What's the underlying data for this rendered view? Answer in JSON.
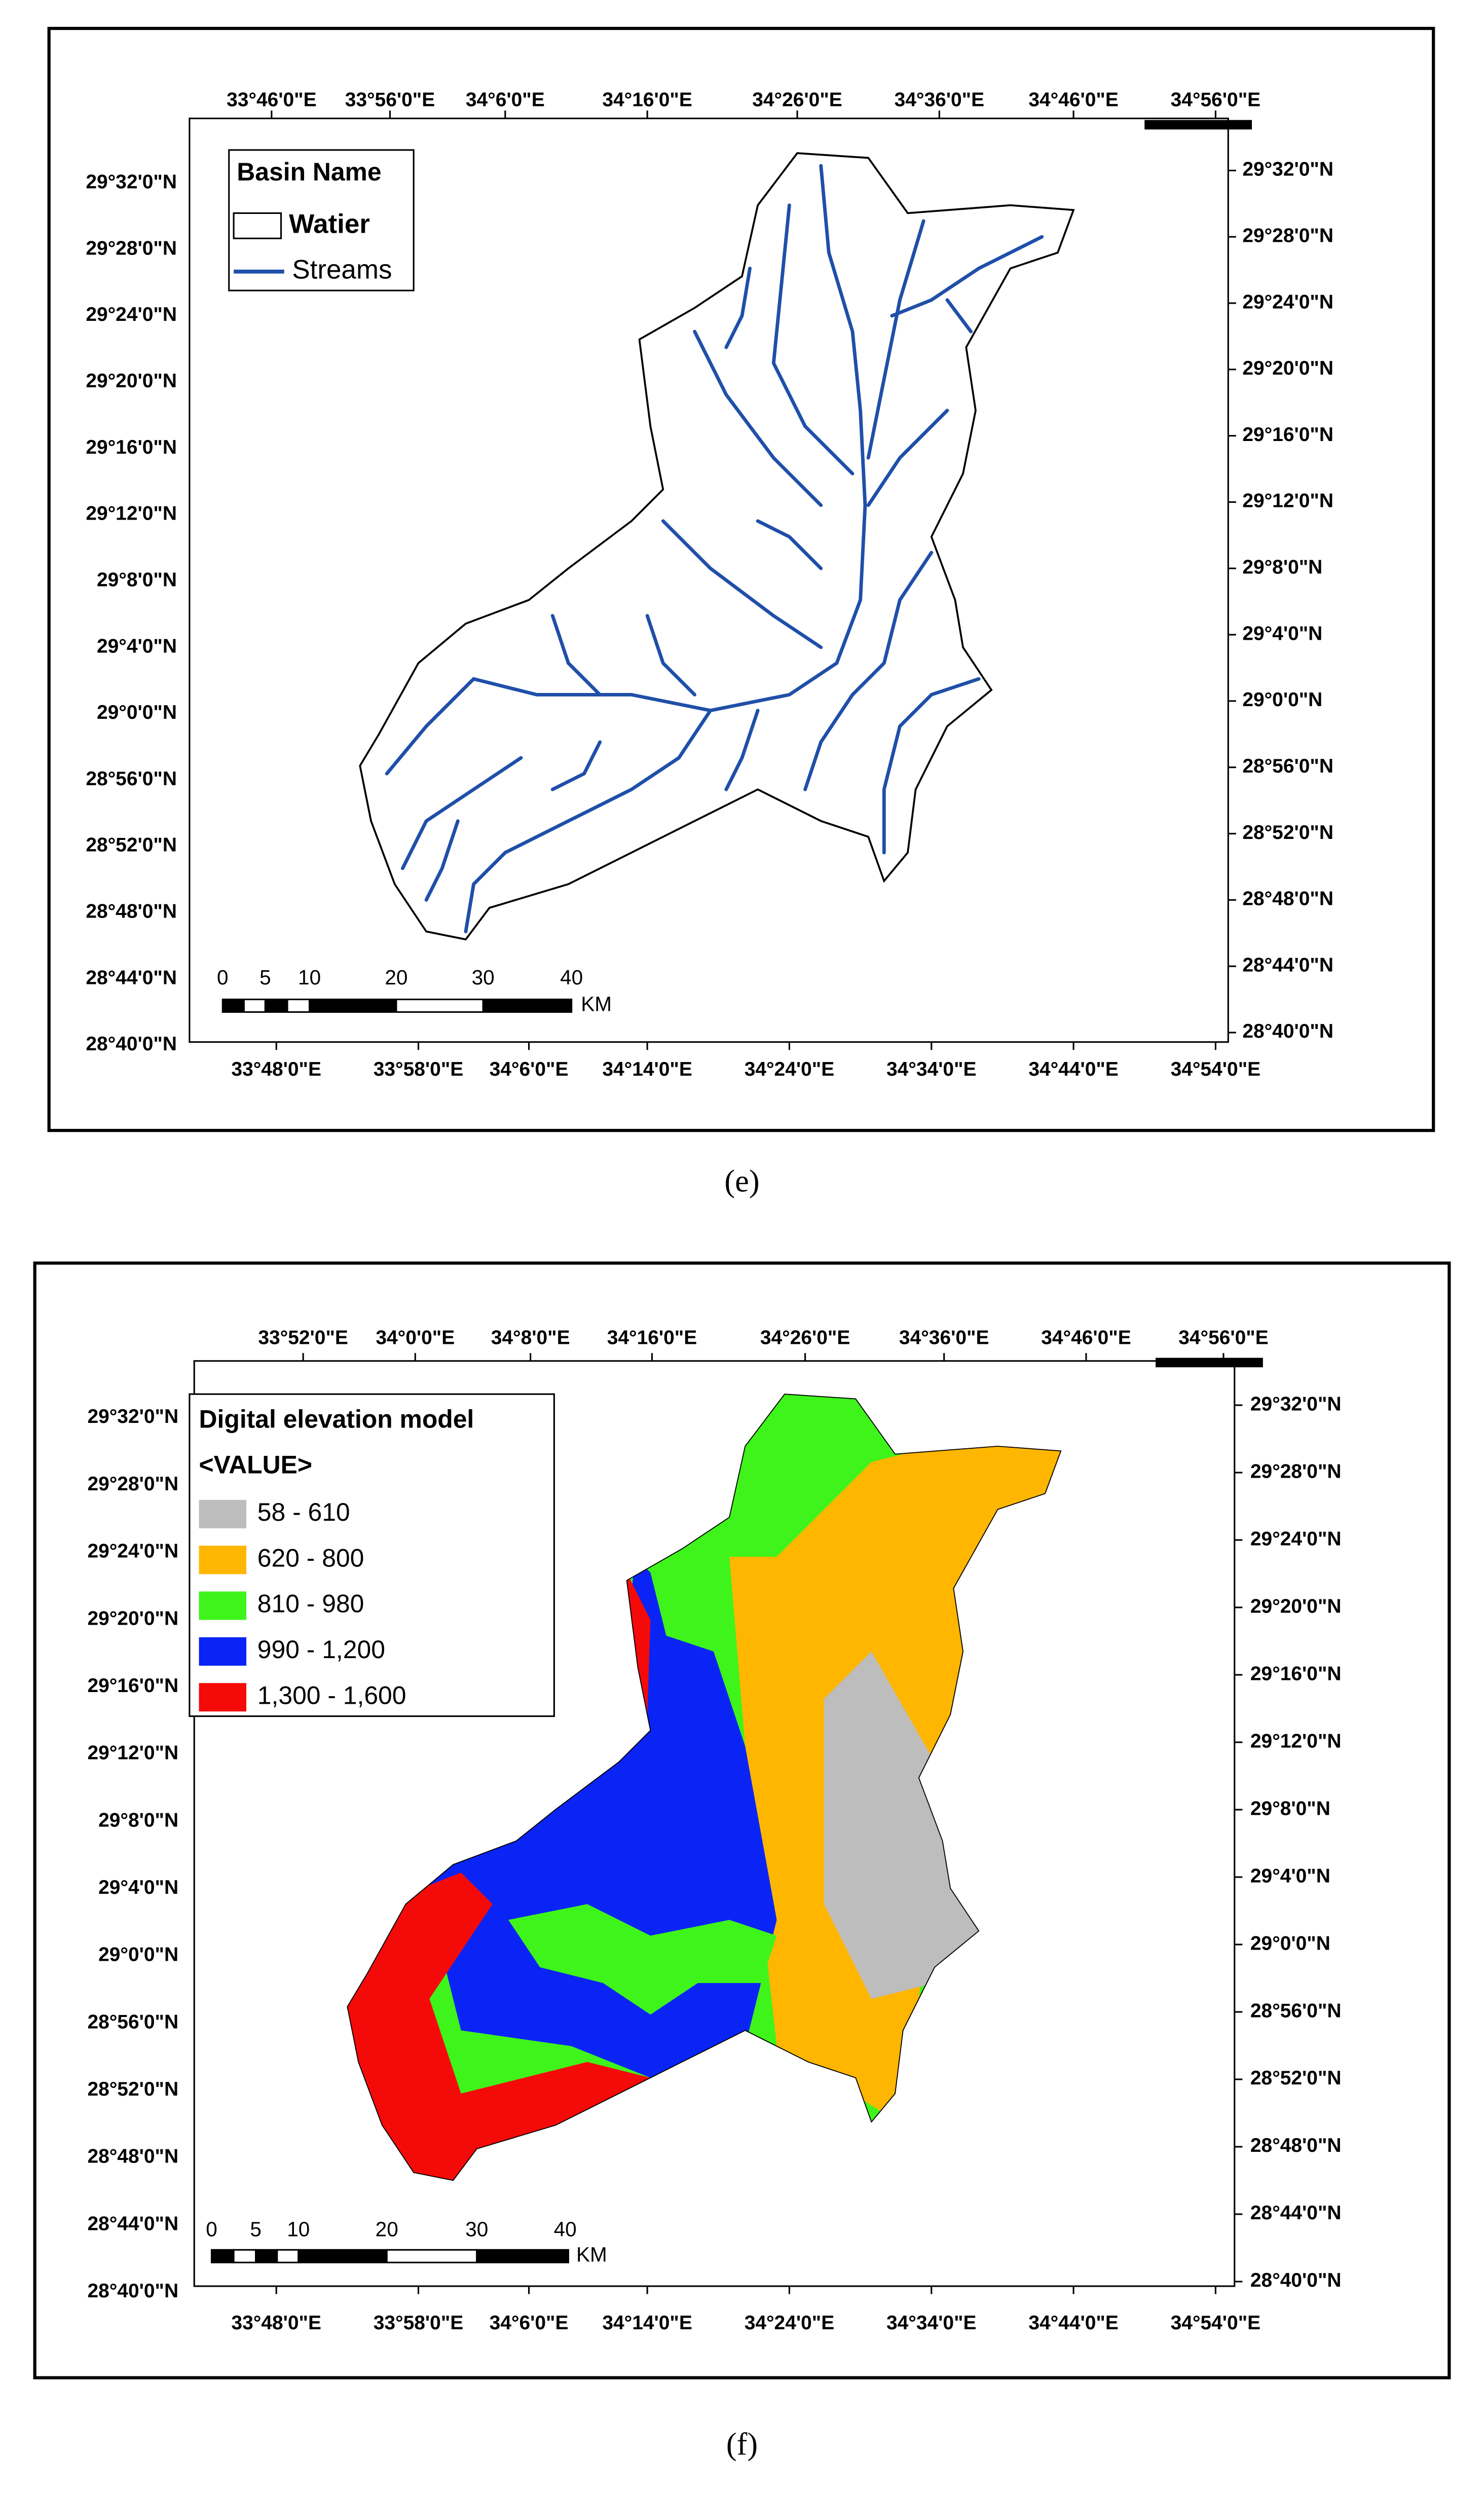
{
  "panels": [
    {
      "caption": "(e)",
      "top_ticks": [
        "33°46'0\"E",
        "33°56'0\"E",
        "34°6'0\"E",
        "34°16'0\"E",
        "34°26'0\"E",
        "34°36'0\"E",
        "34°46'0\"E",
        "34°56'0\"E"
      ],
      "bottom_ticks": [
        "33°48'0\"E",
        "33°58'0\"E",
        "34°6'0\"E",
        "34°14'0\"E",
        "34°24'0\"E",
        "34°34'0\"E",
        "34°44'0\"E",
        "34°54'0\"E"
      ],
      "left_ticks": [
        "29°32'0\"N",
        "29°28'0\"N",
        "29°24'0\"N",
        "29°20'0\"N",
        "29°16'0\"N",
        "29°12'0\"N",
        "29°8'0\"N",
        "29°4'0\"N",
        "29°0'0\"N",
        "28°56'0\"N",
        "28°52'0\"N",
        "28°48'0\"N",
        "28°44'0\"N",
        "28°40'0\"N"
      ],
      "right_ticks": [
        "29°32'0\"N",
        "29°28'0\"N",
        "29°24'0\"N",
        "29°20'0\"N",
        "29°16'0\"N",
        "29°12'0\"N",
        "29°8'0\"N",
        "29°4'0\"N",
        "29°0'0\"N",
        "28°56'0\"N",
        "28°52'0\"N",
        "28°48'0\"N",
        "28°44'0\"N",
        "28°40'0\"N"
      ],
      "legend": {
        "title": "Basin Name",
        "items": [
          "Watier",
          "Streams"
        ]
      },
      "scale": {
        "labels": [
          0,
          5,
          10,
          20,
          30,
          40
        ],
        "unit": "KM"
      }
    },
    {
      "caption": "(f)",
      "top_ticks": [
        "33°52'0\"E",
        "34°0'0\"E",
        "34°8'0\"E",
        "34°16'0\"E",
        "34°26'0\"E",
        "34°36'0\"E",
        "34°46'0\"E",
        "34°56'0\"E"
      ],
      "bottom_ticks": [
        "33°48'0\"E",
        "33°58'0\"E",
        "34°6'0\"E",
        "34°14'0\"E",
        "34°24'0\"E",
        "34°34'0\"E",
        "34°44'0\"E",
        "34°54'0\"E"
      ],
      "left_ticks": [
        "29°32'0\"N",
        "29°28'0\"N",
        "29°24'0\"N",
        "29°20'0\"N",
        "29°16'0\"N",
        "29°12'0\"N",
        "29°8'0\"N",
        "29°4'0\"N",
        "29°0'0\"N",
        "28°56'0\"N",
        "28°52'0\"N",
        "28°48'0\"N",
        "28°44'0\"N",
        "28°40'0\"N"
      ],
      "right_ticks": [
        "29°32'0\"N",
        "29°28'0\"N",
        "29°24'0\"N",
        "29°20'0\"N",
        "29°16'0\"N",
        "29°12'0\"N",
        "29°8'0\"N",
        "29°4'0\"N",
        "29°0'0\"N",
        "28°56'0\"N",
        "28°52'0\"N",
        "28°48'0\"N",
        "28°44'0\"N",
        "28°40'0\"N"
      ],
      "legend": {
        "title": "Digital elevation model",
        "subtitle": "<VALUE>",
        "items": [
          {
            "label": "58 - 610",
            "color": "#bdbdbd"
          },
          {
            "label": "620 - 800",
            "color": "#ffb600"
          },
          {
            "label": "810 - 980",
            "color": "#3ff41a"
          },
          {
            "label": "990 - 1,200",
            "color": "#0a24f5"
          },
          {
            "label": "1,300 - 1,600",
            "color": "#f50a0a"
          }
        ]
      },
      "scale": {
        "labels": [
          0,
          5,
          10,
          20,
          30,
          40
        ],
        "unit": "KM"
      }
    }
  ]
}
